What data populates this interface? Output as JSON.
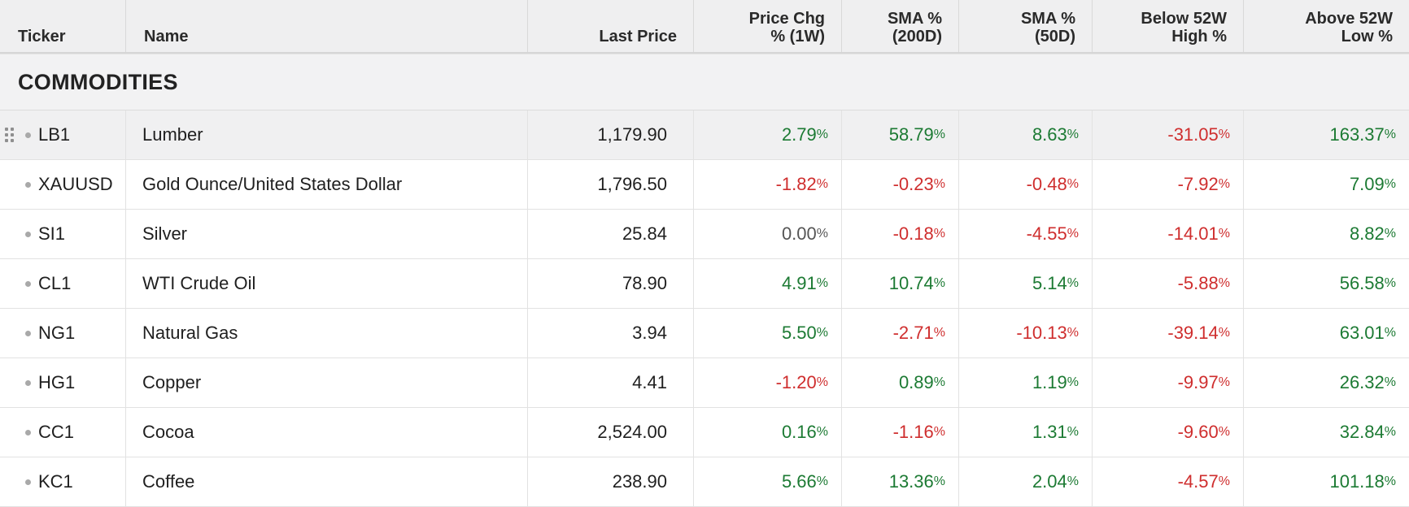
{
  "colors": {
    "positive": "#1c7a33",
    "negative": "#cf2e2e",
    "neutral": "#555555"
  },
  "header": {
    "ticker": "Ticker",
    "name": "Name",
    "last_price": "Last Price",
    "price_chg_l1": "Price Chg",
    "price_chg_l2": "% (1W)",
    "sma200_l1": "SMA %",
    "sma200_l2": "(200D)",
    "sma50_l1": "SMA %",
    "sma50_l2": "(50D)",
    "below_l1": "Below 52W",
    "below_l2": "High %",
    "above_l1": "Above 52W",
    "above_l2": "Low %"
  },
  "section_title": "COMMODITIES",
  "percent_unit": "%",
  "rows": [
    {
      "ticker": "LB1",
      "name": "Lumber",
      "last_price": "1,179.90",
      "chg_1w": "2.79",
      "sma_200": "58.79",
      "sma_50": "8.63",
      "below_high": "-31.05",
      "above_low": "163.37",
      "active": true
    },
    {
      "ticker": "XAUUSD",
      "name": "Gold Ounce/United States Dollar",
      "last_price": "1,796.50",
      "chg_1w": "-1.82",
      "sma_200": "-0.23",
      "sma_50": "-0.48",
      "below_high": "-7.92",
      "above_low": "7.09"
    },
    {
      "ticker": "SI1",
      "name": "Silver",
      "last_price": "25.84",
      "chg_1w": "0.00",
      "sma_200": "-0.18",
      "sma_50": "-4.55",
      "below_high": "-14.01",
      "above_low": "8.82"
    },
    {
      "ticker": "CL1",
      "name": "WTI Crude Oil",
      "last_price": "78.90",
      "chg_1w": "4.91",
      "sma_200": "10.74",
      "sma_50": "5.14",
      "below_high": "-5.88",
      "above_low": "56.58"
    },
    {
      "ticker": "NG1",
      "name": "Natural Gas",
      "last_price": "3.94",
      "chg_1w": "5.50",
      "sma_200": "-2.71",
      "sma_50": "-10.13",
      "below_high": "-39.14",
      "above_low": "63.01"
    },
    {
      "ticker": "HG1",
      "name": "Copper",
      "last_price": "4.41",
      "chg_1w": "-1.20",
      "sma_200": "0.89",
      "sma_50": "1.19",
      "below_high": "-9.97",
      "above_low": "26.32"
    },
    {
      "ticker": "CC1",
      "name": "Cocoa",
      "last_price": "2,524.00",
      "chg_1w": "0.16",
      "sma_200": "-1.16",
      "sma_50": "1.31",
      "below_high": "-9.60",
      "above_low": "32.84"
    },
    {
      "ticker": "KC1",
      "name": "Coffee",
      "last_price": "238.90",
      "chg_1w": "5.66",
      "sma_200": "13.36",
      "sma_50": "2.04",
      "below_high": "-4.57",
      "above_low": "101.18"
    }
  ]
}
